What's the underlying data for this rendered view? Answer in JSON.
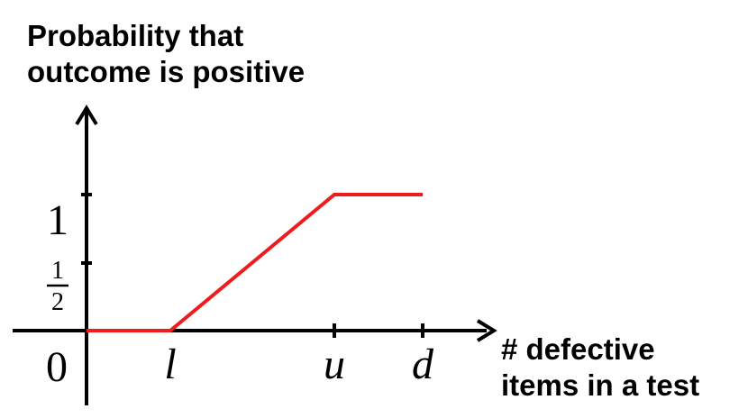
{
  "y_axis_title": [
    "Probability that",
    "outcome is positive"
  ],
  "x_axis_title": [
    "# defective",
    "items in a test"
  ],
  "y_ticks": [
    {
      "id": "one",
      "value": 1,
      "label": "1"
    },
    {
      "id": "half",
      "value": 0.5,
      "numerator": "1",
      "denominator": "2"
    },
    {
      "id": "zero",
      "value": 0,
      "label": "0"
    }
  ],
  "x_ticks": [
    {
      "id": "l",
      "label": "l"
    },
    {
      "id": "u",
      "label": "u"
    },
    {
      "id": "d",
      "label": "d"
    }
  ],
  "curve": {
    "color": "#ee1c1c",
    "points": [
      {
        "x": "0",
        "y": 0
      },
      {
        "x": "l",
        "y": 0
      },
      {
        "x": "u",
        "y": 1
      },
      {
        "x": "d",
        "y": 1
      }
    ]
  },
  "axis_color": "#000000"
}
